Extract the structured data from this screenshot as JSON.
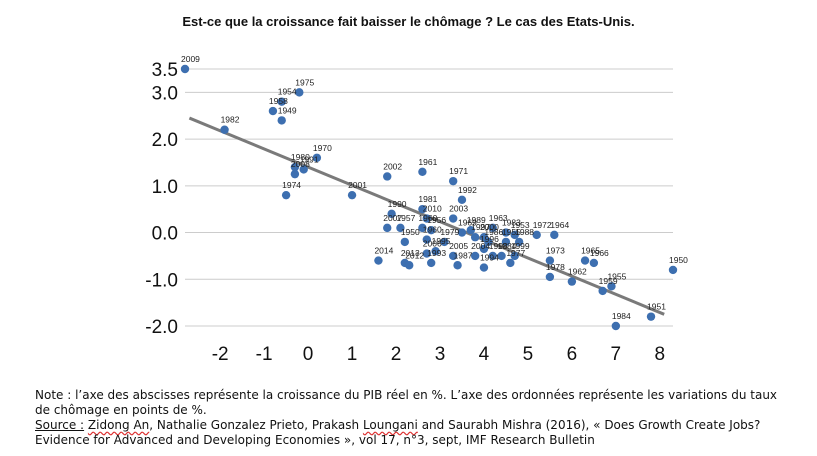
{
  "title": "Est-ce que la croissance fait baisser le chômage ? Le cas des Etats-Unis.",
  "note": {
    "text": "Note : l’axe des abscisses représente la croissance du PIB réel en %. L’axe des ordonnées représente les variations du taux de chômage en points de %.",
    "source_label": "Source :",
    "source_authors_1": "Zidong An",
    "source_authors_2": ", Nathalie Gonzalez Prieto, Prakash ",
    "source_authors_3": "Loungani",
    "source_rest": " and Saurabh Mishra (2016), « Does Growth Create Jobs? Evidence for Advanced and Developing Economies », vol 17, n°3, sept, IMF Research Bulletin"
  },
  "chart_data": {
    "type": "scatter",
    "xlim": [
      -2.8,
      8.3
    ],
    "ylim": [
      -2.0,
      3.5
    ],
    "x_ticks": [
      -2,
      -1,
      0,
      1,
      2,
      3,
      4,
      5,
      6,
      7,
      8
    ],
    "y_ticks": [
      {
        "value": 3.5,
        "label": "3.5"
      },
      {
        "value": 3.0,
        "label": "3.0"
      },
      {
        "value": 2.0,
        "label": "2.0"
      },
      {
        "value": 1.0,
        "label": "1.0"
      },
      {
        "value": 0.0,
        "label": "0.0"
      },
      {
        "value": -1.0,
        "label": "-1.0"
      },
      {
        "value": -2.0,
        "label": "-2.0"
      }
    ],
    "grid": "horizontal",
    "trendline": {
      "x": [
        -2.7,
        8.1
      ],
      "y": [
        2.45,
        -1.75
      ]
    },
    "colors": {
      "point": "#3d6fb0",
      "trend": "#7a7a7a",
      "grid": "#cccccc"
    },
    "points": [
      {
        "year": "2009",
        "x": -2.8,
        "y": 3.5
      },
      {
        "year": "1982",
        "x": -1.9,
        "y": 2.2
      },
      {
        "year": "1954",
        "x": -0.6,
        "y": 2.8
      },
      {
        "year": "1975",
        "x": -0.2,
        "y": 3.0
      },
      {
        "year": "1958",
        "x": -0.8,
        "y": 2.6
      },
      {
        "year": "1949",
        "x": -0.6,
        "y": 2.4
      },
      {
        "year": "1970",
        "x": 0.2,
        "y": 1.6
      },
      {
        "year": "1980",
        "x": -0.3,
        "y": 1.4
      },
      {
        "year": "1991",
        "x": -0.1,
        "y": 1.35
      },
      {
        "year": "2008",
        "x": -0.3,
        "y": 1.25
      },
      {
        "year": "1974",
        "x": -0.5,
        "y": 0.8
      },
      {
        "year": "2001",
        "x": 1.0,
        "y": 0.8
      },
      {
        "year": "2002",
        "x": 1.8,
        "y": 1.2
      },
      {
        "year": "1961",
        "x": 2.6,
        "y": 1.3
      },
      {
        "year": "1971",
        "x": 3.3,
        "y": 1.1
      },
      {
        "year": "1992",
        "x": 3.5,
        "y": 0.7
      },
      {
        "year": "1981",
        "x": 2.6,
        "y": 0.5
      },
      {
        "year": "1990",
        "x": 1.9,
        "y": 0.4
      },
      {
        "year": "2010",
        "x": 2.7,
        "y": 0.3
      },
      {
        "year": "2003",
        "x": 3.3,
        "y": 0.3
      },
      {
        "year": "2007",
        "x": 1.8,
        "y": 0.1
      },
      {
        "year": "1957",
        "x": 2.1,
        "y": 0.1
      },
      {
        "year": "1960",
        "x": 2.6,
        "y": 0.1
      },
      {
        "year": "1956",
        "x": 2.8,
        "y": 0.05
      },
      {
        "year": "1989",
        "x": 3.7,
        "y": 0.05
      },
      {
        "year": "1969",
        "x": 3.5,
        "y": 0.0
      },
      {
        "year": "1963",
        "x": 4.2,
        "y": 0.1
      },
      {
        "year": "1983",
        "x": 4.5,
        "y": 0.0
      },
      {
        "year": "2000",
        "x": 4.0,
        "y": -0.1
      },
      {
        "year": "1953",
        "x": 4.7,
        "y": -0.05
      },
      {
        "year": "1972",
        "x": 5.2,
        "y": -0.05
      },
      {
        "year": "1964",
        "x": 5.6,
        "y": -0.05
      },
      {
        "year": "1950",
        "x": 2.2,
        "y": -0.2
      },
      {
        "year": "1960",
        "x": 2.7,
        "y": -0.15
      },
      {
        "year": "1979",
        "x": 3.1,
        "y": -0.2
      },
      {
        "year": "1997",
        "x": 3.8,
        "y": -0.1
      },
      {
        "year": "1986",
        "x": 4.1,
        "y": -0.2
      },
      {
        "year": "1955",
        "x": 4.5,
        "y": -0.2
      },
      {
        "year": "1988",
        "x": 4.8,
        "y": -0.2
      },
      {
        "year": "2006",
        "x": 2.7,
        "y": -0.45
      },
      {
        "year": "1995",
        "x": 2.9,
        "y": -0.4
      },
      {
        "year": "2005",
        "x": 3.3,
        "y": -0.5
      },
      {
        "year": "1993",
        "x": 2.8,
        "y": -0.65
      },
      {
        "year": "1996",
        "x": 4.0,
        "y": -0.35
      },
      {
        "year": "2004",
        "x": 3.8,
        "y": -0.5
      },
      {
        "year": "1998",
        "x": 4.2,
        "y": -0.5
      },
      {
        "year": "1984",
        "x": 4.4,
        "y": -0.5
      },
      {
        "year": "1999",
        "x": 4.7,
        "y": -0.5
      },
      {
        "year": "1977",
        "x": 4.6,
        "y": -0.65
      },
      {
        "year": "2014",
        "x": 1.6,
        "y": -0.6
      },
      {
        "year": "2013",
        "x": 2.2,
        "y": -0.65
      },
      {
        "year": "2012",
        "x": 2.3,
        "y": -0.7
      },
      {
        "year": "1987",
        "x": 3.4,
        "y": -0.7
      },
      {
        "year": "1994",
        "x": 4.0,
        "y": -0.75
      },
      {
        "year": "1973",
        "x": 5.5,
        "y": -0.6
      },
      {
        "year": "1965",
        "x": 6.3,
        "y": -0.6
      },
      {
        "year": "1966",
        "x": 6.5,
        "y": -0.65
      },
      {
        "year": "1978",
        "x": 5.5,
        "y": -0.95
      },
      {
        "year": "1962",
        "x": 6.0,
        "y": -1.05
      },
      {
        "year": "1950",
        "x": 8.3,
        "y": -0.8
      },
      {
        "year": "1955",
        "x": 6.9,
        "y": -1.15
      },
      {
        "year": "1959",
        "x": 6.7,
        "y": -1.25
      },
      {
        "year": "1951",
        "x": 7.8,
        "y": -1.8
      },
      {
        "year": "1984",
        "x": 7.0,
        "y": -2.0
      }
    ]
  }
}
